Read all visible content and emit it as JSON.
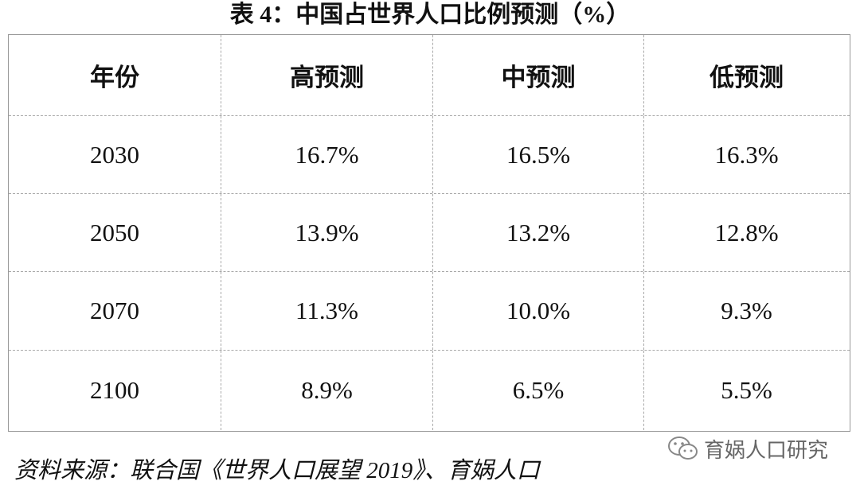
{
  "title": "表 4：中国占世界人口比例预测（%）",
  "table": {
    "header": [
      "年份",
      "高预测",
      "中预测",
      "低预测"
    ],
    "rows": [
      [
        "2030",
        "16.7%",
        "16.5%",
        "16.3%"
      ],
      [
        "2050",
        "13.9%",
        "13.2%",
        "12.8%"
      ],
      [
        "2070",
        "11.3%",
        "10.0%",
        "9.3%"
      ],
      [
        "2100",
        "8.9%",
        "6.5%",
        "5.5%"
      ]
    ]
  },
  "source": "资料来源：联合国《世界人口展望 2019》、育娲人口",
  "watermark": "育娲人口研究"
}
